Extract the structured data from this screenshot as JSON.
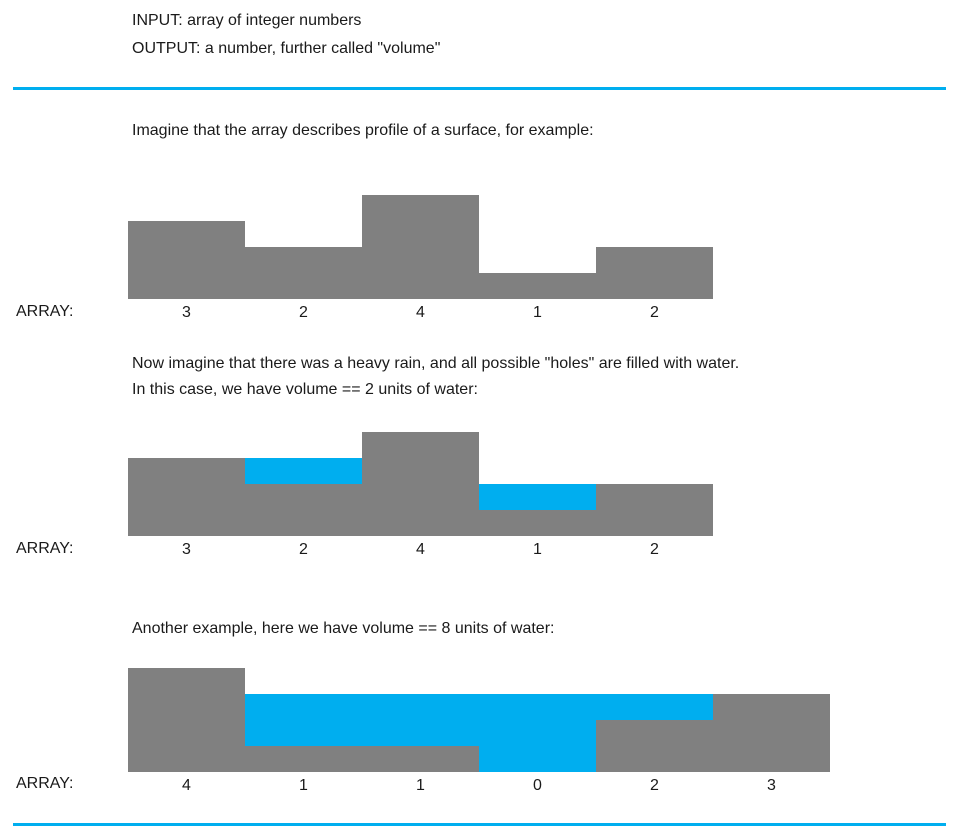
{
  "header": {
    "input_line": "INPUT: array of integer numbers",
    "output_line": "OUTPUT: a number, further called \"volume\""
  },
  "intro": {
    "text": "Imagine that the array describes profile of a surface, for example:"
  },
  "rain": {
    "line1": "Now imagine that there was a heavy rain, and all possible \"holes\" are filled with water.",
    "line2": "In this case, we have volume == 2 units of water:"
  },
  "another": {
    "text": "Another example, here we have volume == 8 units of water:"
  },
  "array_label": "ARRAY:",
  "colors": {
    "ground": "#808080",
    "water": "#00aeef",
    "rule": "#00aeef"
  },
  "chart_data": [
    {
      "type": "bar",
      "heights": [
        3,
        2,
        4,
        1,
        2
      ],
      "water": [
        0,
        0,
        0,
        0,
        0
      ],
      "labels": [
        "3",
        "2",
        "4",
        "1",
        "2"
      ]
    },
    {
      "type": "bar",
      "heights": [
        3,
        2,
        4,
        1,
        2
      ],
      "water": [
        0,
        1,
        0,
        1,
        0
      ],
      "labels": [
        "3",
        "2",
        "4",
        "1",
        "2"
      ]
    },
    {
      "type": "bar",
      "heights": [
        4,
        1,
        1,
        0,
        2,
        3
      ],
      "water": [
        0,
        2,
        2,
        3,
        1,
        0
      ],
      "labels": [
        "4",
        "1",
        "1",
        "0",
        "2",
        "3"
      ]
    }
  ]
}
